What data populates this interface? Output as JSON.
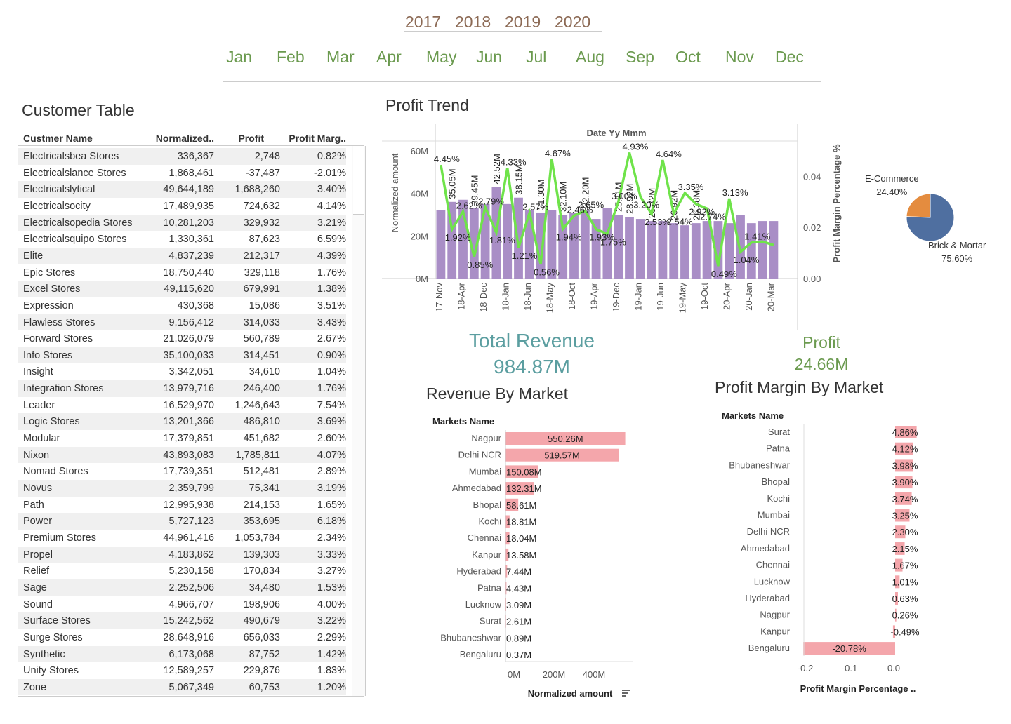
{
  "filters": {
    "years": [
      "2017",
      "2018",
      "2019",
      "2020"
    ],
    "months": [
      "Jan",
      "Feb",
      "Mar",
      "Apr",
      "May",
      "Jun",
      "Jul",
      "Aug",
      "Sep",
      "Oct",
      "Nov",
      "Dec"
    ]
  },
  "colors": {
    "bar_purple": "#a98ec6",
    "line_green": "#6fe34a",
    "pink": "#f4a6ab",
    "pie_blue": "#4f6fa0",
    "pie_orange": "#e48c3f",
    "kpi_teal": "#5b9ea0",
    "kpi_green": "#6b9a4f"
  },
  "customer_table": {
    "title": "Customer Table",
    "columns": [
      "Custmer Name",
      "Normalized..",
      "Profit",
      "Profit Marg.."
    ],
    "rows": [
      [
        "Electricalsbea Stores",
        "336,367",
        "2,748",
        "0.82%"
      ],
      [
        "Electricalslance Stores",
        "1,868,461",
        "-37,487",
        "-2.01%"
      ],
      [
        "Electricalslytical",
        "49,644,189",
        "1,688,260",
        "3.40%"
      ],
      [
        "Electricalsocity",
        "17,489,935",
        "724,632",
        "4.14%"
      ],
      [
        "Electricalsopedia Stores",
        "10,281,203",
        "329,932",
        "3.21%"
      ],
      [
        "Electricalsquipo Stores",
        "1,330,361",
        "87,623",
        "6.59%"
      ],
      [
        "Elite",
        "4,837,239",
        "212,317",
        "4.39%"
      ],
      [
        "Epic Stores",
        "18,750,440",
        "329,118",
        "1.76%"
      ],
      [
        "Excel Stores",
        "49,115,620",
        "679,991",
        "1.38%"
      ],
      [
        "Expression",
        "430,368",
        "15,086",
        "3.51%"
      ],
      [
        "Flawless Stores",
        "9,156,412",
        "314,033",
        "3.43%"
      ],
      [
        "Forward Stores",
        "21,026,079",
        "560,789",
        "2.67%"
      ],
      [
        "Info Stores",
        "35,100,033",
        "314,451",
        "0.90%"
      ],
      [
        "Insight",
        "3,342,051",
        "34,610",
        "1.04%"
      ],
      [
        "Integration Stores",
        "13,979,716",
        "246,400",
        "1.76%"
      ],
      [
        "Leader",
        "16,529,970",
        "1,246,643",
        "7.54%"
      ],
      [
        "Logic Stores",
        "13,201,366",
        "486,810",
        "3.69%"
      ],
      [
        "Modular",
        "17,379,851",
        "451,682",
        "2.60%"
      ],
      [
        "Nixon",
        "43,893,083",
        "1,785,811",
        "4.07%"
      ],
      [
        "Nomad Stores",
        "17,739,351",
        "512,481",
        "2.89%"
      ],
      [
        "Novus",
        "2,359,799",
        "75,341",
        "3.19%"
      ],
      [
        "Path",
        "12,995,938",
        "214,153",
        "1.65%"
      ],
      [
        "Power",
        "5,727,123",
        "353,695",
        "6.18%"
      ],
      [
        "Premium Stores",
        "44,961,416",
        "1,053,784",
        "2.34%"
      ],
      [
        "Propel",
        "4,183,862",
        "139,303",
        "3.33%"
      ],
      [
        "Relief",
        "5,230,158",
        "170,834",
        "3.27%"
      ],
      [
        "Sage",
        "2,252,506",
        "34,480",
        "1.53%"
      ],
      [
        "Sound",
        "4,966,707",
        "198,906",
        "4.00%"
      ],
      [
        "Surface Stores",
        "15,242,562",
        "490,679",
        "3.22%"
      ],
      [
        "Surge Stores",
        "28,648,916",
        "656,033",
        "2.29%"
      ],
      [
        "Synthetic",
        "6,173,068",
        "87,752",
        "1.42%"
      ],
      [
        "Unity Stores",
        "12,589,257",
        "229,876",
        "1.83%"
      ],
      [
        "Zone",
        "5,067,349",
        "60,753",
        "1.20%"
      ]
    ]
  },
  "kpis": {
    "revenue_label": "Total Revenue",
    "revenue_value": "984.87M",
    "profit_label": "Profit",
    "profit_value": "24.66M"
  },
  "chart_data": [
    {
      "type": "bar",
      "title": "Profit Trend",
      "subtitle": "Date Yy Mmm",
      "ylabel": "Normalized amount",
      "y2label": "Profit Margin Percentage %",
      "ylim": [
        0,
        60000000
      ],
      "y2lim": [
        0,
        0.05
      ],
      "yticks": [
        "0M",
        "20M",
        "40M",
        "60M"
      ],
      "y2ticks": [
        "0.00",
        "0.02",
        "0.04"
      ],
      "tick_labels": [
        "17-Nov",
        "18-Apr",
        "18-Dec",
        "18-Jan",
        "18-Jun",
        "18-May",
        "18-Oct",
        "19-Apr",
        "19-Dec",
        "19-Jan",
        "19-Jun",
        "19-May",
        "19-Oct",
        "20-Apr",
        "20-Jan",
        "20-Mar"
      ],
      "bar_values": [
        32,
        36,
        37,
        33,
        35,
        43,
        35,
        38,
        32,
        31,
        32,
        30,
        31,
        32,
        28,
        33,
        30,
        29,
        28,
        27,
        27,
        26,
        25,
        26,
        27,
        27,
        26,
        30,
        26,
        27,
        27
      ],
      "bar_labels": [
        "",
        "35.05M",
        "",
        "39.45M",
        "",
        "42.52M",
        "",
        "38.15M",
        "",
        "31.30M",
        "",
        "32.10M",
        "",
        "32.20M",
        "",
        "",
        "25.11M",
        "28.92M",
        "",
        "26.72M",
        "",
        "26.92M",
        "",
        "26.38M",
        "",
        "",
        "",
        "",
        "",
        "",
        ""
      ],
      "line_values": [
        4.45,
        1.92,
        2.62,
        0.85,
        2.79,
        1.81,
        4.33,
        1.21,
        2.57,
        0.56,
        4.67,
        1.94,
        2.46,
        2.65,
        1.93,
        1.75,
        3.0,
        4.93,
        3.2,
        2.53,
        4.64,
        2.54,
        3.35,
        2.92,
        2.74,
        0.49,
        3.13,
        1.04,
        1.41,
        1.45,
        1.31
      ],
      "line_labels": [
        "4.45%",
        "1.92%",
        "2.62%",
        "0.85%",
        "2.79%",
        "1.81%",
        "4.33%",
        "1.21%",
        "2.57%",
        "0.56%",
        "4.67%",
        "1.94%",
        "2.46%",
        "2.65%",
        "1.93%",
        "1.75%",
        "3.00%",
        "4.93%",
        "3.20%",
        "2.53%",
        "4.64%",
        "2.54%",
        "3.35%",
        "2.92%",
        "2.74%",
        "0.49%",
        "3.13%",
        "1.04%",
        "1.41%",
        "",
        ""
      ]
    },
    {
      "type": "pie",
      "labels": [
        "E-Commerce",
        "Brick & Mortar"
      ],
      "values": [
        24.4,
        75.6
      ],
      "value_labels": [
        "24.40%",
        "75.60%"
      ]
    },
    {
      "type": "bar",
      "orientation": "horizontal",
      "title": "Revenue By Market",
      "category_header": "Markets Name",
      "xlabel": "Normalized amount",
      "xlim": [
        0,
        600
      ],
      "xticks": [
        "0M",
        "200M",
        "400M"
      ],
      "categories": [
        "Nagpur",
        "Delhi NCR",
        "Mumbai",
        "Ahmedabad",
        "Bhopal",
        "Kochi",
        "Chennai",
        "Kanpur",
        "Hyderabad",
        "Patna",
        "Lucknow",
        "Surat",
        "Bhubaneshwar",
        "Bengaluru"
      ],
      "values": [
        550.26,
        519.57,
        150.08,
        132.31,
        58.61,
        18.81,
        18.04,
        13.58,
        7.44,
        4.43,
        3.09,
        2.61,
        0.89,
        0.37
      ],
      "value_labels": [
        "550.26M",
        "519.57M",
        "150.08M",
        "132.31M",
        "58.61M",
        "18.81M",
        "18.04M",
        "13.58M",
        "7.44M",
        "4.43M",
        "3.09M",
        "2.61M",
        "0.89M",
        "0.37M"
      ]
    },
    {
      "type": "bar",
      "orientation": "horizontal",
      "title": "Profit Margin By Market",
      "category_header": "Markets Name",
      "xlabel": "Profit Margin Percentage ..",
      "xlim": [
        -0.22,
        0.06
      ],
      "xticks": [
        "-0.2",
        "-0.1",
        "0.0"
      ],
      "categories": [
        "Surat",
        "Patna",
        "Bhubaneshwar",
        "Bhopal",
        "Kochi",
        "Mumbai",
        "Delhi NCR",
        "Ahmedabad",
        "Chennai",
        "Lucknow",
        "Hyderabad",
        "Nagpur",
        "Kanpur",
        "Bengaluru"
      ],
      "values": [
        4.86,
        4.12,
        3.98,
        3.9,
        3.74,
        3.25,
        2.3,
        2.15,
        1.67,
        1.01,
        0.63,
        0.26,
        -0.49,
        -20.78
      ],
      "value_labels": [
        "4.86%",
        "4.12%",
        "3.98%",
        "3.90%",
        "3.74%",
        "3.25%",
        "2.30%",
        "2.15%",
        "1.67%",
        "1.01%",
        "0.63%",
        "0.26%",
        "-0.49%",
        "-20.78%"
      ]
    }
  ]
}
